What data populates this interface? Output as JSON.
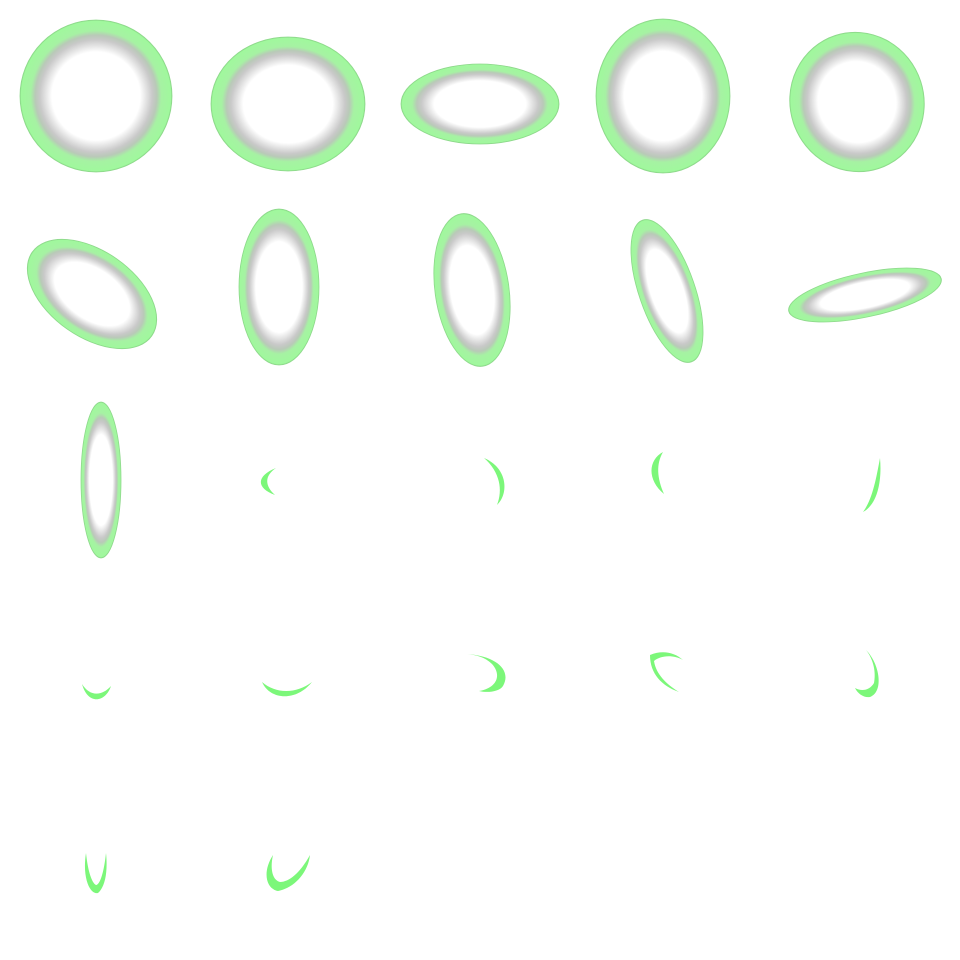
{
  "sprite_sheet": {
    "grid": {
      "columns": 5,
      "rows": 5
    },
    "frame_count": 22,
    "colors": {
      "background": "#ffffff",
      "glow_green": "#9dfb9a",
      "crescent_green": "#7cf77a",
      "inner_shade": "#bdbdbd",
      "center": "#ffffff",
      "edge_line": "#8fd88c"
    },
    "frames": [
      {
        "kind": "ring"
      },
      {
        "kind": "ring"
      },
      {
        "kind": "ring"
      },
      {
        "kind": "ring"
      },
      {
        "kind": "ring"
      },
      {
        "kind": "ring"
      },
      {
        "kind": "ring"
      },
      {
        "kind": "ring"
      },
      {
        "kind": "ring"
      },
      {
        "kind": "ring"
      },
      {
        "kind": "ring"
      },
      {
        "kind": "crescent"
      },
      {
        "kind": "crescent"
      },
      {
        "kind": "crescent"
      },
      {
        "kind": "crescent"
      },
      {
        "kind": "crescent"
      },
      {
        "kind": "crescent"
      },
      {
        "kind": "crescent"
      },
      {
        "kind": "crescent"
      },
      {
        "kind": "crescent"
      },
      {
        "kind": "crescent"
      },
      {
        "kind": "crescent"
      }
    ]
  }
}
